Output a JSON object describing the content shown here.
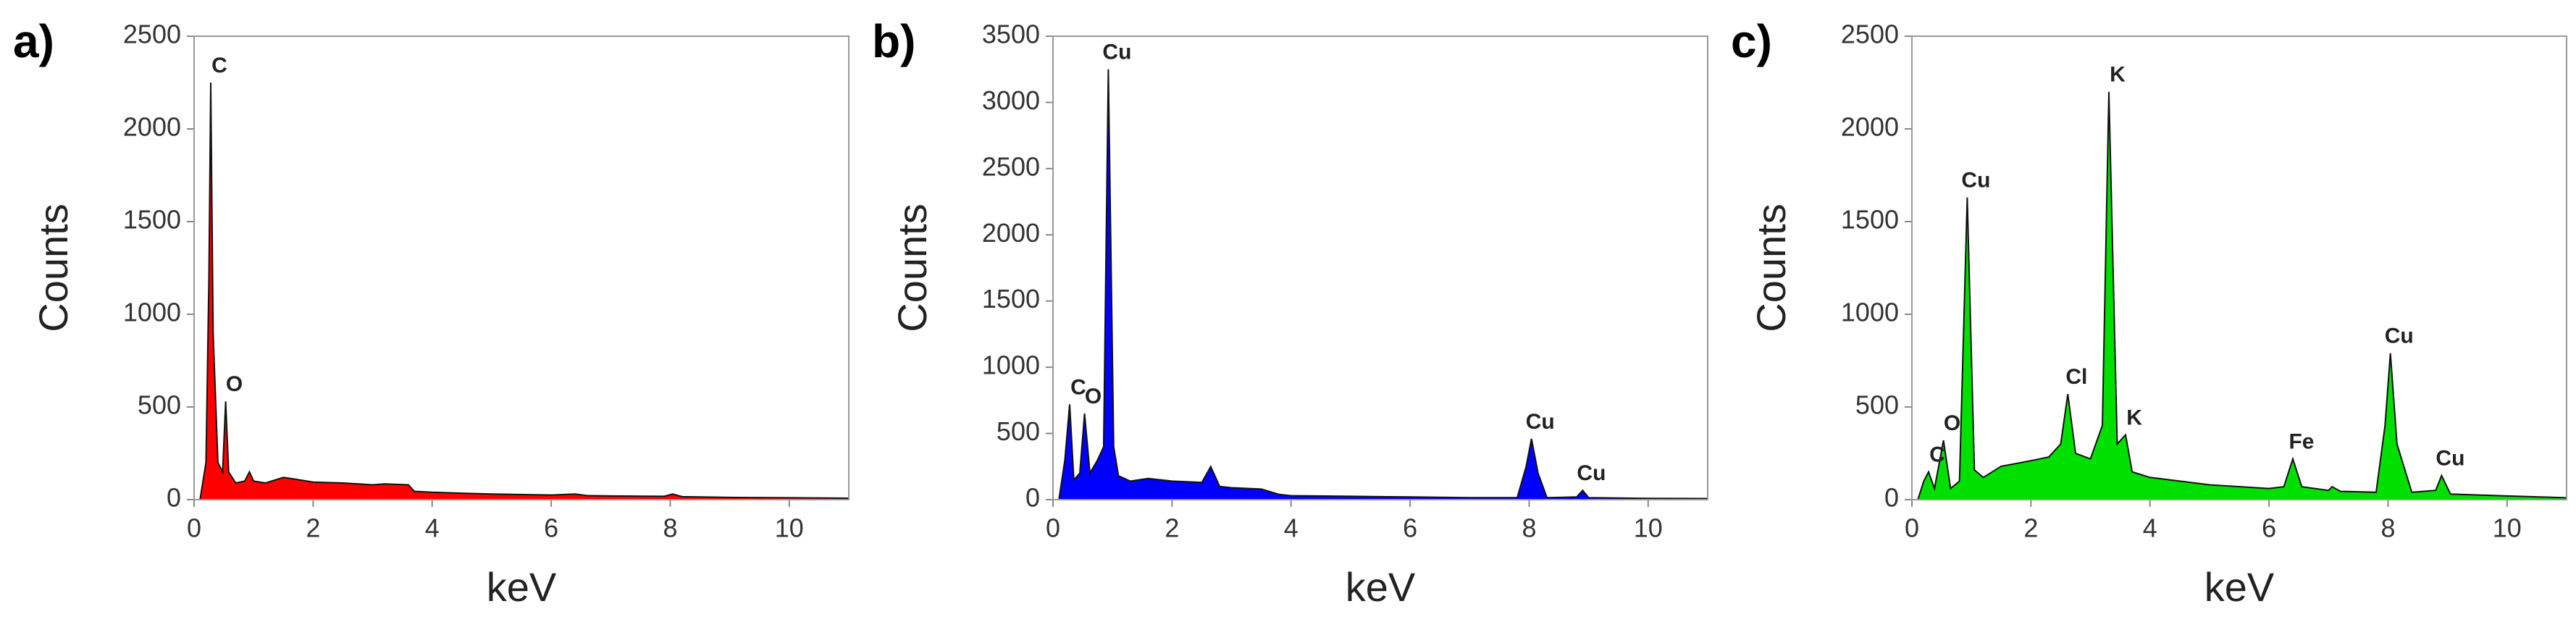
{
  "chart_data": [
    {
      "type": "area",
      "panel_label": "a)",
      "x_label": "keV",
      "y_label": "Counts",
      "color": "#ff0000",
      "xlim": [
        0,
        11
      ],
      "xticks": [
        0,
        2,
        4,
        6,
        8,
        10
      ],
      "ylim": [
        0,
        2500
      ],
      "yticks": [
        0,
        500,
        1000,
        1500,
        2000,
        2500
      ],
      "x": [
        0.1,
        0.2,
        0.25,
        0.28,
        0.32,
        0.4,
        0.48,
        0.53,
        0.58,
        0.7,
        0.85,
        0.93,
        1.0,
        1.2,
        1.5,
        1.7,
        2.0,
        2.5,
        3.0,
        3.2,
        3.6,
        3.7,
        4.0,
        5.0,
        6.0,
        6.4,
        6.6,
        7.0,
        7.9,
        8.04,
        8.2,
        9.0,
        10.0,
        11.0
      ],
      "values": [
        0,
        200,
        1200,
        2250,
        900,
        200,
        150,
        530,
        150,
        90,
        100,
        150,
        100,
        90,
        120,
        110,
        95,
        90,
        80,
        85,
        80,
        45,
        40,
        30,
        25,
        30,
        22,
        20,
        18,
        30,
        16,
        12,
        10,
        8
      ],
      "annotations": [
        {
          "text": "C",
          "x": 0.28,
          "y": 2250
        },
        {
          "text": "O",
          "x": 0.53,
          "y": 530
        }
      ]
    },
    {
      "type": "area",
      "panel_label": "b)",
      "x_label": "keV",
      "y_label": "Counts",
      "color": "#0000ff",
      "xlim": [
        0,
        11
      ],
      "xticks": [
        0,
        2,
        4,
        6,
        8,
        10
      ],
      "ylim": [
        0,
        3500
      ],
      "yticks": [
        0,
        500,
        1000,
        1500,
        2000,
        2500,
        3000,
        3500
      ],
      "x": [
        0.1,
        0.2,
        0.28,
        0.35,
        0.45,
        0.53,
        0.62,
        0.75,
        0.85,
        0.93,
        1.02,
        1.1,
        1.3,
        1.6,
        2.0,
        2.5,
        2.65,
        2.8,
        3.0,
        3.5,
        3.8,
        4.0,
        5.0,
        6.0,
        7.0,
        7.8,
        7.95,
        8.04,
        8.15,
        8.3,
        8.8,
        8.9,
        9.0,
        10.0,
        11.0
      ],
      "values": [
        0,
        300,
        720,
        150,
        200,
        650,
        200,
        300,
        400,
        3250,
        400,
        180,
        140,
        160,
        140,
        130,
        250,
        100,
        90,
        80,
        40,
        30,
        25,
        20,
        15,
        15,
        250,
        460,
        200,
        15,
        20,
        70,
        15,
        10,
        8
      ],
      "annotations": [
        {
          "text": "C",
          "x": 0.28,
          "y": 720
        },
        {
          "text": "O",
          "x": 0.53,
          "y": 650
        },
        {
          "text": "Cu",
          "x": 0.93,
          "y": 3250
        },
        {
          "text": "Cu",
          "x": 8.04,
          "y": 460
        },
        {
          "text": "Cu",
          "x": 8.9,
          "y": 70
        }
      ]
    },
    {
      "type": "area",
      "panel_label": "c)",
      "x_label": "keV",
      "y_label": "Counts",
      "color": "#00e000",
      "xlim": [
        0,
        11
      ],
      "xticks": [
        0,
        2,
        4,
        6,
        8,
        10
      ],
      "ylim": [
        0,
        2500
      ],
      "yticks": [
        0,
        500,
        1000,
        1500,
        2000,
        2500
      ],
      "x": [
        0.1,
        0.2,
        0.28,
        0.38,
        0.53,
        0.65,
        0.8,
        0.93,
        1.05,
        1.2,
        1.5,
        2.0,
        2.3,
        2.5,
        2.62,
        2.75,
        3.0,
        3.2,
        3.31,
        3.45,
        3.59,
        3.7,
        4.0,
        5.0,
        6.0,
        6.25,
        6.4,
        6.55,
        7.0,
        7.06,
        7.2,
        7.8,
        7.95,
        8.04,
        8.15,
        8.4,
        8.8,
        8.9,
        9.05,
        10.0,
        11.0
      ],
      "values": [
        0,
        100,
        150,
        60,
        320,
        60,
        100,
        1630,
        160,
        120,
        180,
        210,
        230,
        300,
        570,
        250,
        220,
        400,
        2200,
        300,
        350,
        150,
        120,
        80,
        60,
        70,
        220,
        70,
        50,
        70,
        45,
        40,
        400,
        790,
        300,
        40,
        50,
        130,
        30,
        20,
        10
      ],
      "annotations": [
        {
          "text": "C",
          "x": 0.28,
          "y": 150
        },
        {
          "text": "O",
          "x": 0.53,
          "y": 320
        },
        {
          "text": "Cu",
          "x": 0.93,
          "y": 1630
        },
        {
          "text": "Cl",
          "x": 2.62,
          "y": 570
        },
        {
          "text": "K",
          "x": 3.31,
          "y": 2200
        },
        {
          "text": "K",
          "x": 3.59,
          "y": 350
        },
        {
          "text": "Fe",
          "x": 6.4,
          "y": 220
        },
        {
          "text": "Cu",
          "x": 8.04,
          "y": 790
        },
        {
          "text": "Cu",
          "x": 8.9,
          "y": 130
        }
      ]
    }
  ]
}
